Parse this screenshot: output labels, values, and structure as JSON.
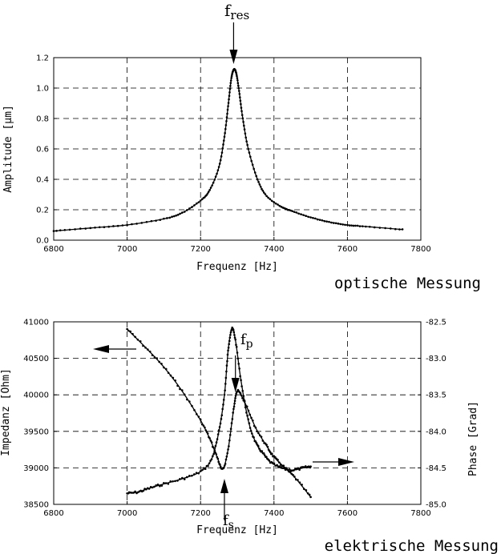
{
  "chart_data": [
    {
      "type": "line",
      "title": "optische Messung",
      "xlabel": "Frequenz [Hz]",
      "ylabel": "Amplitude [μm]",
      "xlim": [
        6800,
        7800
      ],
      "ylim": [
        0.0,
        1.2
      ],
      "xticks": [
        "6800",
        "7000",
        "7200",
        "7400",
        "7600",
        "7800"
      ],
      "yticks": [
        "0.0",
        "0.2",
        "0.4",
        "0.6",
        "0.8",
        "1.0",
        "1.2"
      ],
      "annotation": {
        "base": "f",
        "sub": "res",
        "x": 7290
      },
      "series": [
        {
          "name": "Amplitude",
          "x": [
            6800,
            6900,
            7000,
            7100,
            7150,
            7200,
            7225,
            7250,
            7265,
            7275,
            7283,
            7290,
            7297,
            7305,
            7315,
            7330,
            7355,
            7380,
            7420,
            7450,
            7500,
            7550,
            7600,
            7650,
            7750
          ],
          "y": [
            0.06,
            0.08,
            0.1,
            0.14,
            0.18,
            0.26,
            0.33,
            0.48,
            0.68,
            0.88,
            1.05,
            1.12,
            1.1,
            0.98,
            0.8,
            0.6,
            0.4,
            0.29,
            0.22,
            0.19,
            0.15,
            0.12,
            0.1,
            0.09,
            0.07
          ]
        }
      ]
    },
    {
      "type": "line",
      "title": "elektrische Messung",
      "xlabel": "Frequenz [Hz]",
      "ylabel": "Impedanz [Ohm]",
      "y2label": "Phase [Grad]",
      "xlim": [
        6800,
        7800
      ],
      "ylim": [
        38500,
        41000
      ],
      "y2lim": [
        -85.0,
        -82.5
      ],
      "xticks": [
        "6800",
        "7000",
        "7200",
        "7400",
        "7600",
        "7800"
      ],
      "yticks": [
        "38500",
        "39000",
        "39500",
        "40000",
        "40500",
        "41000"
      ],
      "y2ticks": [
        "-85.0",
        "-84.5",
        "-84.0",
        "-83.5",
        "-83.0",
        "-82.5"
      ],
      "annotations": [
        {
          "base": "f",
          "sub": "p",
          "x": 7295
        },
        {
          "base": "f",
          "sub": "s",
          "x": 7265
        }
      ],
      "series": [
        {
          "name": "Impedanz",
          "axis": "left",
          "x": [
            7000,
            7050,
            7100,
            7150,
            7200,
            7225,
            7245,
            7260,
            7275,
            7290,
            7300,
            7320,
            7350,
            7380,
            7400,
            7430,
            7460,
            7500
          ],
          "y": [
            40900,
            40650,
            40380,
            40050,
            39650,
            39400,
            39150,
            38980,
            39250,
            39800,
            40050,
            39900,
            39550,
            39300,
            39150,
            39000,
            38850,
            38600
          ]
        },
        {
          "name": "Phase",
          "axis": "right",
          "x": [
            7000,
            7030,
            7060,
            7100,
            7150,
            7200,
            7230,
            7250,
            7265,
            7275,
            7285,
            7295,
            7310,
            7330,
            7350,
            7370,
            7390,
            7420,
            7450,
            7480,
            7500
          ],
          "y": [
            -84.85,
            -84.83,
            -84.78,
            -84.72,
            -84.65,
            -84.55,
            -84.38,
            -84.0,
            -83.5,
            -82.9,
            -82.6,
            -82.75,
            -83.3,
            -83.85,
            -84.15,
            -84.3,
            -84.42,
            -84.5,
            -84.53,
            -84.5,
            -84.48
          ]
        }
      ]
    }
  ]
}
